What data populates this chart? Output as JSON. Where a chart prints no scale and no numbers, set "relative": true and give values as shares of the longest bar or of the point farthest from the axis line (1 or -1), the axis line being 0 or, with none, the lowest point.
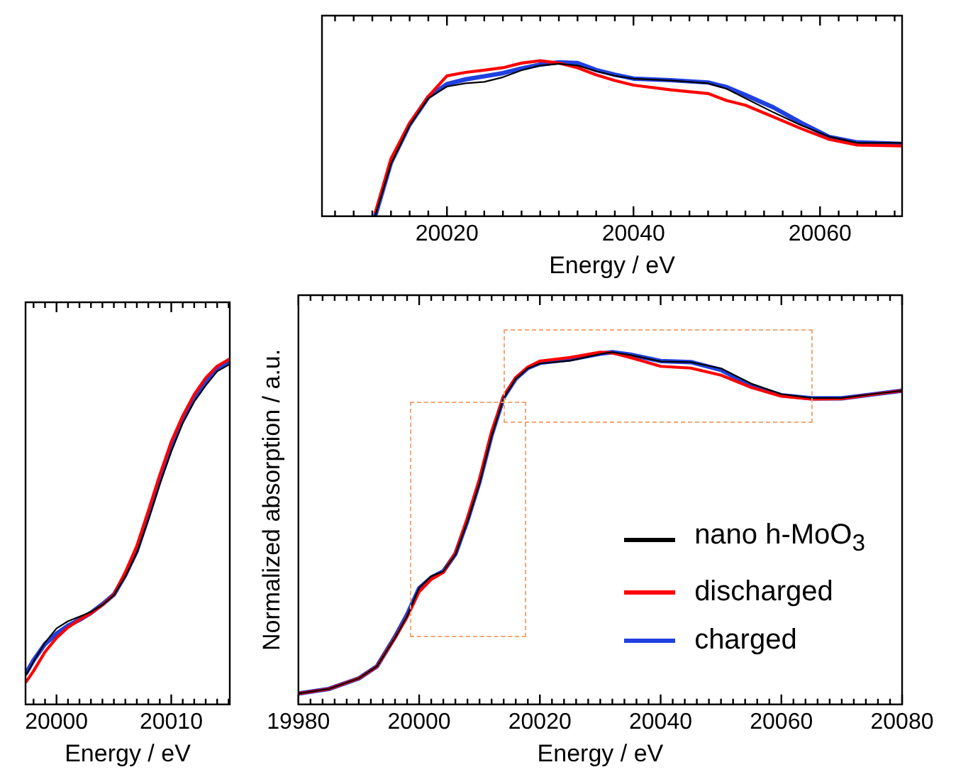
{
  "chart_data": [
    {
      "type": "line",
      "relative": true,
      "xlabel": "Energy / eV",
      "x": [
        20012.3,
        20014,
        20016,
        20018,
        20020,
        20022,
        20024,
        20026,
        20028,
        20030,
        20032,
        20034,
        20036,
        20038,
        20040,
        20044,
        20048,
        20050,
        20052,
        20055,
        20058,
        20061,
        20064,
        20068.8
      ],
      "series": [
        {
          "color": "#000000",
          "values": [
            0,
            0.337,
            0.584,
            0.759,
            0.834,
            0.855,
            0.864,
            0.894,
            0.939,
            0.969,
            0.98,
            0.969,
            0.933,
            0.903,
            0.885,
            0.873,
            0.855,
            0.819,
            0.759,
            0.668,
            0.584,
            0.512,
            0.472,
            0.472
          ]
        },
        {
          "color": "#ff0000",
          "values": [
            0.02,
            0.37,
            0.6,
            0.77,
            0.903,
            0.925,
            0.939,
            0.955,
            0.985,
            1.0,
            0.985,
            0.955,
            0.909,
            0.873,
            0.843,
            0.813,
            0.789,
            0.744,
            0.714,
            0.639,
            0.563,
            0.494,
            0.458,
            0.452
          ]
        },
        {
          "color": "#2040e0",
          "values": [
            0,
            0.345,
            0.59,
            0.765,
            0.85,
            0.88,
            0.9,
            0.92,
            0.95,
            0.975,
            0.99,
            0.985,
            0.94,
            0.91,
            0.885,
            0.875,
            0.86,
            0.83,
            0.78,
            0.7,
            0.6,
            0.51,
            0.475,
            0.465
          ]
        }
      ],
      "xlim": [
        20006.6,
        20068.8
      ],
      "xticks": [
        {
          "value": 20008,
          "label": null
        },
        {
          "value": 20010,
          "label": null
        },
        {
          "value": 20012,
          "label": null
        },
        {
          "value": 20014,
          "label": null
        },
        {
          "value": 20016,
          "label": null
        },
        {
          "value": 20018,
          "label": null
        },
        20020,
        {
          "value": 20022,
          "label": null
        },
        {
          "value": 20024,
          "label": null
        },
        {
          "value": 20026,
          "label": null
        },
        {
          "value": 20028,
          "label": null
        },
        {
          "value": 20030,
          "label": null
        },
        {
          "value": 20032,
          "label": null
        },
        {
          "value": 20034,
          "label": null
        },
        {
          "value": 20036,
          "label": null
        },
        {
          "value": 20038,
          "label": null
        },
        20040,
        {
          "value": 20042,
          "label": null
        },
        {
          "value": 20044,
          "label": null
        },
        {
          "value": 20046,
          "label": null
        },
        {
          "value": 20048,
          "label": null
        },
        {
          "value": 20050,
          "label": null
        },
        {
          "value": 20052,
          "label": null
        },
        {
          "value": 20054,
          "label": null
        },
        {
          "value": 20056,
          "label": null
        },
        {
          "value": 20058,
          "label": null
        },
        20060,
        {
          "value": 20062,
          "label": null
        },
        {
          "value": 20064,
          "label": null
        },
        {
          "value": 20066,
          "label": null
        },
        {
          "value": 20068,
          "label": null
        }
      ]
    },
    {
      "type": "line",
      "relative": true,
      "xlabel": "Energy / eV",
      "x": [
        19997.3,
        19998,
        19999,
        20000,
        20001,
        20002,
        20003,
        20004,
        20005,
        20006,
        20007,
        20008,
        20009,
        20010,
        20011,
        20012,
        20013,
        20014,
        20015.1
      ],
      "series": [
        {
          "color": "#000000",
          "values": [
            0.083,
            0.124,
            0.179,
            0.22,
            0.241,
            0.254,
            0.268,
            0.288,
            0.316,
            0.37,
            0.439,
            0.534,
            0.637,
            0.732,
            0.814,
            0.876,
            0.923,
            0.964,
            0.985
          ]
        },
        {
          "color": "#ff0000",
          "values": [
            0.063,
            0.097,
            0.152,
            0.193,
            0.223,
            0.245,
            0.264,
            0.288,
            0.318,
            0.383,
            0.459,
            0.56,
            0.664,
            0.76,
            0.835,
            0.897,
            0.945,
            0.979,
            1.0
          ]
        },
        {
          "color": "#2040e0",
          "values": [
            0.088,
            0.128,
            0.175,
            0.205,
            0.228,
            0.245,
            0.265,
            0.29,
            0.318,
            0.375,
            0.445,
            0.545,
            0.65,
            0.745,
            0.825,
            0.888,
            0.935,
            0.972,
            0.995
          ]
        }
      ],
      "xlim": [
        19997.3,
        20015.1
      ],
      "xticks": [
        {
          "value": 19998,
          "label": null
        },
        {
          "value": 19999,
          "label": null
        },
        20000,
        {
          "value": 20001,
          "label": null
        },
        {
          "value": 20002,
          "label": null
        },
        {
          "value": 20003,
          "label": null
        },
        {
          "value": 20004,
          "label": null
        },
        {
          "value": 20005,
          "label": null
        },
        {
          "value": 20006,
          "label": null
        },
        {
          "value": 20007,
          "label": null
        },
        {
          "value": 20008,
          "label": null
        },
        {
          "value": 20009,
          "label": null
        },
        20010,
        {
          "value": 20011,
          "label": null
        },
        {
          "value": 20012,
          "label": null
        },
        {
          "value": 20013,
          "label": null
        },
        {
          "value": 20014,
          "label": null
        },
        {
          "value": 20015,
          "label": null
        }
      ]
    },
    {
      "type": "line",
      "relative": true,
      "xlabel": "Energy / eV",
      "ylabel": "Normalized absorption / a.u.",
      "legend": "bottom right",
      "x": [
        19980,
        19985,
        19990,
        19993,
        19996,
        19998,
        20000,
        20002,
        20004,
        20006,
        20008,
        20010,
        20012,
        20014,
        20016,
        20018,
        20020,
        20025,
        20030,
        20032,
        20035,
        20040,
        20045,
        20050,
        20055,
        20060,
        20065,
        20070,
        20075,
        20080
      ],
      "series": [
        {
          "name": "nano h-MoO$_{3}$",
          "color": "#000000",
          "values": [
            0.031,
            0.044,
            0.074,
            0.108,
            0.189,
            0.25,
            0.331,
            0.364,
            0.378,
            0.425,
            0.519,
            0.628,
            0.762,
            0.87,
            0.924,
            0.954,
            0.968,
            0.976,
            0.995,
            1.0,
            0.992,
            0.974,
            0.972,
            0.954,
            0.911,
            0.881,
            0.87,
            0.87,
            0.881,
            0.891
          ]
        },
        {
          "name": "discharged",
          "color": "#ff0000",
          "values": [
            0.031,
            0.044,
            0.074,
            0.108,
            0.189,
            0.248,
            0.32,
            0.355,
            0.375,
            0.43,
            0.53,
            0.64,
            0.775,
            0.875,
            0.928,
            0.958,
            0.975,
            0.985,
            1.0,
            0.998,
            0.985,
            0.96,
            0.955,
            0.935,
            0.9,
            0.875,
            0.867,
            0.868,
            0.88,
            0.891
          ]
        },
        {
          "name": "charged",
          "color": "#2040e0",
          "values": [
            0.031,
            0.044,
            0.074,
            0.108,
            0.192,
            0.255,
            0.33,
            0.36,
            0.378,
            0.427,
            0.522,
            0.632,
            0.765,
            0.872,
            0.925,
            0.955,
            0.97,
            0.98,
            0.996,
            1.0,
            0.993,
            0.975,
            0.972,
            0.95,
            0.905,
            0.878,
            0.869,
            0.869,
            0.88,
            0.891
          ]
        }
      ],
      "xlim": [
        19980,
        20080
      ],
      "xticks": [
        19980,
        {
          "value": 19982,
          "label": null
        },
        {
          "value": 19984,
          "label": null
        },
        {
          "value": 19986,
          "label": null
        },
        {
          "value": 19988,
          "label": null
        },
        {
          "value": 19990,
          "label": null
        },
        {
          "value": 19992,
          "label": null
        },
        {
          "value": 19994,
          "label": null
        },
        {
          "value": 19996,
          "label": null
        },
        {
          "value": 19998,
          "label": null
        },
        20000,
        {
          "value": 20002,
          "label": null
        },
        {
          "value": 20004,
          "label": null
        },
        {
          "value": 20006,
          "label": null
        },
        {
          "value": 20008,
          "label": null
        },
        {
          "value": 20010,
          "label": null
        },
        {
          "value": 20012,
          "label": null
        },
        {
          "value": 20014,
          "label": null
        },
        {
          "value": 20016,
          "label": null
        },
        {
          "value": 20018,
          "label": null
        },
        20020,
        {
          "value": 20022,
          "label": null
        },
        {
          "value": 20024,
          "label": null
        },
        {
          "value": 20026,
          "label": null
        },
        {
          "value": 20028,
          "label": null
        },
        {
          "value": 20030,
          "label": null
        },
        {
          "value": 20032,
          "label": null
        },
        {
          "value": 20034,
          "label": null
        },
        {
          "value": 20036,
          "label": null
        },
        {
          "value": 20038,
          "label": null
        },
        20040,
        {
          "value": 20042,
          "label": null
        },
        {
          "value": 20044,
          "label": null
        },
        {
          "value": 20046,
          "label": null
        },
        {
          "value": 20048,
          "label": null
        },
        {
          "value": 20050,
          "label": null
        },
        {
          "value": 20052,
          "label": null
        },
        {
          "value": 20054,
          "label": null
        },
        {
          "value": 20056,
          "label": null
        },
        {
          "value": 20058,
          "label": null
        },
        20060,
        {
          "value": 20062,
          "label": null
        },
        {
          "value": 20064,
          "label": null
        },
        {
          "value": 20066,
          "label": null
        },
        {
          "value": 20068,
          "label": null
        },
        {
          "value": 20070,
          "label": null
        },
        {
          "value": 20072,
          "label": null
        },
        {
          "value": 20074,
          "label": null
        },
        {
          "value": 20076,
          "label": null
        },
        {
          "value": 20078,
          "label": null
        },
        20080
      ]
    }
  ]
}
